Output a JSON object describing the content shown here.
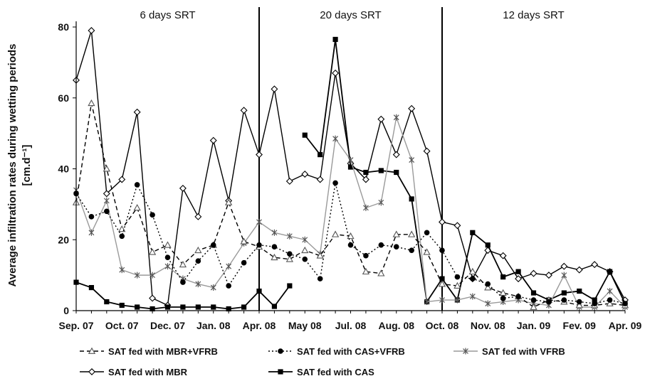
{
  "chart_data": {
    "type": "line",
    "ylabel": "Average infiltration rates during wetting periods",
    "ylabel_unit": "[cm.d⁻¹]",
    "ylim": [
      0,
      80
    ],
    "yticks": [
      "0",
      "20",
      "40",
      "60",
      "80"
    ],
    "grid": false,
    "legend_position": "bottom",
    "xtick_labels": [
      "Sep. 07",
      "Oct. 07",
      "Dec. 07",
      "Jan. 08",
      "Apr. 08",
      "May 08",
      "Jul. 08",
      "Aug. 08",
      "Oct. 08",
      "Nov. 08",
      "Jan. 09",
      "Fev. 09",
      "Apr. 09"
    ],
    "xtick_index": [
      0,
      3,
      6,
      9,
      12,
      15,
      18,
      21,
      24,
      27,
      30,
      33,
      36
    ],
    "x_count": 37,
    "periods": [
      {
        "label": "6 days SRT",
        "start": 0,
        "end": 12
      },
      {
        "label": "20 days SRT",
        "start": 12,
        "end": 24
      },
      {
        "label": "12 days SRT",
        "start": 24,
        "end": 36
      }
    ],
    "period_boundaries": [
      12,
      24
    ],
    "series": [
      {
        "name": "SAT fed with MBR",
        "color": "#000000",
        "dash": "",
        "width": 1.4,
        "marker": "diamond",
        "segments": [
          [
            [
              0,
              65
            ],
            [
              1,
              79
            ],
            [
              2,
              33
            ],
            [
              3,
              37
            ],
            [
              4,
              56
            ],
            [
              5,
              3.5
            ],
            [
              6,
              1.5
            ],
            [
              7,
              34.5
            ],
            [
              8,
              26.5
            ],
            [
              9,
              48
            ],
            [
              10,
              31
            ],
            [
              11,
              56.5
            ],
            [
              12,
              44
            ],
            [
              13,
              62.5
            ],
            [
              14,
              36.5
            ],
            [
              15,
              38.5
            ],
            [
              16,
              37
            ],
            [
              17,
              67
            ],
            [
              18,
              41.5
            ],
            [
              19,
              37
            ],
            [
              20,
              54
            ],
            [
              21,
              44
            ],
            [
              22,
              57
            ],
            [
              23,
              45
            ],
            [
              24,
              25
            ],
            [
              25,
              24
            ],
            [
              26,
              9
            ],
            [
              27,
              17
            ],
            [
              28,
              15.5
            ],
            [
              29,
              9
            ],
            [
              30,
              10.5
            ],
            [
              31,
              10
            ],
            [
              32,
              12.5
            ],
            [
              33,
              11.5
            ],
            [
              34,
              13
            ],
            [
              35,
              11
            ],
            [
              36,
              3
            ]
          ]
        ]
      },
      {
        "name": "SAT fed with CAS",
        "color": "#000000",
        "dash": "",
        "width": 1.8,
        "marker": "square",
        "segments": [
          [
            [
              0,
              8
            ],
            [
              1,
              6.5
            ],
            [
              2,
              2.5
            ],
            [
              3,
              1.5
            ],
            [
              4,
              1
            ],
            [
              5,
              0.5
            ],
            [
              6,
              1
            ],
            [
              7,
              1
            ],
            [
              8,
              1
            ],
            [
              9,
              1
            ],
            [
              10,
              0.5
            ],
            [
              11,
              1
            ],
            [
              12,
              5.5
            ],
            [
              13,
              1.2
            ],
            [
              14,
              7
            ]
          ],
          [
            [
              15,
              49.5
            ],
            [
              16,
              44
            ],
            [
              17,
              76.5
            ],
            [
              18,
              40.5
            ],
            [
              19,
              39
            ],
            [
              20,
              39.5
            ],
            [
              21,
              39
            ],
            [
              22,
              31.5
            ],
            [
              23,
              2.5
            ],
            [
              24,
              9
            ],
            [
              25,
              3
            ],
            [
              26,
              22
            ],
            [
              27,
              18.5
            ],
            [
              28,
              9.5
            ],
            [
              29,
              11
            ],
            [
              30,
              5
            ],
            [
              31,
              3
            ],
            [
              32,
              5
            ],
            [
              33,
              5.5
            ],
            [
              34,
              3
            ],
            [
              35,
              11
            ],
            [
              36,
              2
            ]
          ]
        ]
      },
      {
        "name": "SAT fed with VFRB",
        "color": "#9a9a9a",
        "dash": "",
        "width": 1.4,
        "marker": "star",
        "segments": [
          [
            [
              0,
              34
            ],
            [
              1,
              22
            ],
            [
              2,
              31
            ],
            [
              3,
              11.5
            ],
            [
              4,
              10
            ],
            [
              5,
              10
            ],
            [
              6,
              12.5
            ],
            [
              7,
              9
            ],
            [
              8,
              7.5
            ],
            [
              9,
              6.5
            ],
            [
              10,
              12.5
            ],
            [
              11,
              19
            ],
            [
              12,
              25
            ],
            [
              13,
              22
            ],
            [
              14,
              21
            ],
            [
              15,
              20
            ],
            [
              16,
              16
            ],
            [
              17,
              48.5
            ],
            [
              18,
              42.5
            ],
            [
              19,
              29
            ],
            [
              20,
              30.5
            ],
            [
              21,
              54.5
            ],
            [
              22,
              42.5
            ],
            [
              23,
              2.5
            ],
            [
              24,
              3
            ],
            [
              25,
              3
            ],
            [
              26,
              4
            ],
            [
              27,
              2
            ],
            [
              28,
              2.5
            ],
            [
              29,
              3
            ],
            [
              30,
              2
            ],
            [
              31,
              1.5
            ],
            [
              32,
              10
            ],
            [
              33,
              1
            ],
            [
              34,
              1
            ],
            [
              35,
              5.5
            ],
            [
              36,
              1
            ]
          ]
        ]
      },
      {
        "name": "SAT fed with MBR+VFRB",
        "color": "#000000",
        "dash": "6,4",
        "width": 1.4,
        "marker": "triangle",
        "segments": [
          [
            [
              0,
              30.5
            ],
            [
              1,
              58.5
            ],
            [
              2,
              40
            ],
            [
              3,
              23
            ],
            [
              4,
              29
            ],
            [
              5,
              16.5
            ],
            [
              6,
              18.5
            ],
            [
              7,
              13
            ],
            [
              8,
              17
            ],
            [
              9,
              18.5
            ],
            [
              10,
              30.5
            ],
            [
              11,
              19.5
            ],
            [
              12,
              18
            ],
            [
              13,
              15
            ],
            [
              14,
              14.5
            ],
            [
              15,
              17
            ],
            [
              16,
              15.5
            ],
            [
              17,
              21.5
            ],
            [
              18,
              21
            ],
            [
              19,
              11
            ],
            [
              20,
              10.5
            ],
            [
              21,
              21.5
            ],
            [
              22,
              21.5
            ],
            [
              23,
              16.5
            ],
            [
              24,
              7.5
            ],
            [
              25,
              7
            ],
            [
              26,
              11
            ],
            [
              27,
              6.5
            ],
            [
              28,
              5
            ],
            [
              29,
              4
            ],
            [
              30,
              1
            ],
            [
              31,
              3
            ],
            [
              32,
              2.5
            ],
            [
              33,
              1.5
            ],
            [
              34,
              1.5
            ],
            [
              35,
              2
            ],
            [
              36,
              1.5
            ]
          ]
        ]
      },
      {
        "name": "SAT fed with CAS+VFRB",
        "color": "#000000",
        "dash": "2,3",
        "width": 1.4,
        "marker": "circle",
        "segments": [
          [
            [
              0,
              33
            ],
            [
              1,
              26.5
            ],
            [
              2,
              28
            ],
            [
              3,
              21
            ],
            [
              4,
              35.5
            ],
            [
              5,
              27
            ],
            [
              6,
              15
            ],
            [
              7,
              8
            ],
            [
              8,
              14
            ],
            [
              9,
              18.5
            ],
            [
              10,
              7
            ],
            [
              11,
              13.5
            ],
            [
              12,
              18.5
            ],
            [
              13,
              18
            ],
            [
              14,
              16
            ],
            [
              15,
              14.5
            ],
            [
              16,
              9
            ],
            [
              17,
              36
            ],
            [
              18,
              18.5
            ],
            [
              19,
              15.5
            ],
            [
              20,
              18.5
            ],
            [
              21,
              18
            ],
            [
              22,
              17
            ],
            [
              23,
              22
            ],
            [
              24,
              17
            ],
            [
              25,
              9.5
            ],
            [
              26,
              9
            ],
            [
              27,
              7.5
            ],
            [
              28,
              3.5
            ],
            [
              29,
              4
            ],
            [
              30,
              3
            ],
            [
              31,
              2.5
            ],
            [
              32,
              3
            ],
            [
              33,
              2.5
            ],
            [
              34,
              2
            ],
            [
              35,
              3
            ],
            [
              36,
              2
            ]
          ]
        ]
      }
    ],
    "legend_order": [
      "SAT fed with MBR+VFRB",
      "SAT fed with CAS+VFRB",
      "SAT fed with VFRB",
      "SAT fed with MBR",
      "SAT fed with CAS"
    ]
  }
}
